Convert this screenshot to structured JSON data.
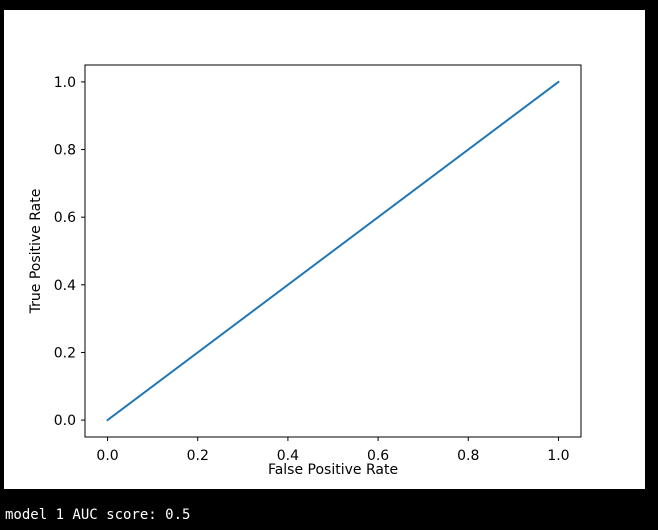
{
  "window": {
    "background_color": "#000000"
  },
  "figure": {
    "background_color": "#ffffff"
  },
  "chart_data": {
    "type": "line",
    "title": "",
    "xlabel": "False Positive Rate",
    "ylabel": "True Positive Rate",
    "x": [
      0.0,
      1.0
    ],
    "series": [
      {
        "values": [
          0.0,
          1.0
        ],
        "color": "#1f77b4",
        "linewidth": 2
      }
    ],
    "xticks": [
      0.0,
      0.2,
      0.4,
      0.6,
      0.8,
      1.0
    ],
    "xtick_labels": [
      "0.0",
      "0.2",
      "0.4",
      "0.6",
      "0.8",
      "1.0"
    ],
    "yticks": [
      0.0,
      0.2,
      0.4,
      0.6,
      0.8,
      1.0
    ],
    "ytick_labels": [
      "0.0",
      "0.2",
      "0.4",
      "0.6",
      "0.8",
      "1.0"
    ],
    "xlim": [
      -0.05,
      1.05
    ],
    "ylim": [
      -0.05,
      1.05
    ],
    "grid": false,
    "legend": null,
    "spine_color": "#000000",
    "tick_color": "#000000"
  },
  "console": {
    "text": "model 1 AUC score: 0.5"
  }
}
